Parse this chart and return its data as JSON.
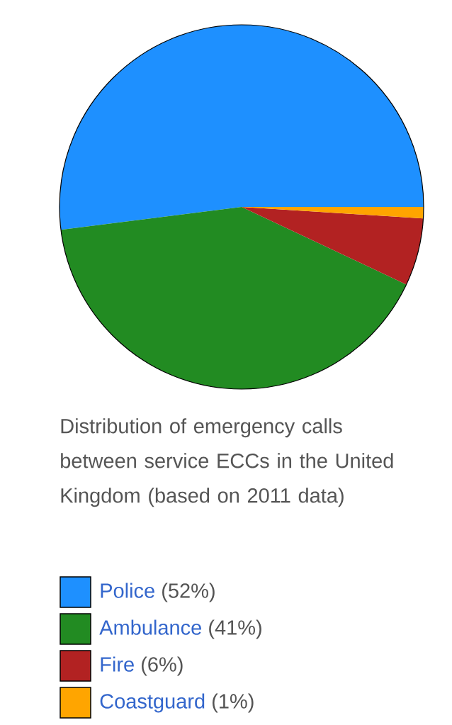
{
  "chart_data": {
    "type": "pie",
    "title": "Distribution of emergency calls between service ECCs in the United Kingdom (based on 2011 data)",
    "categories": [
      "Police",
      "Ambulance",
      "Fire",
      "Coastguard"
    ],
    "values": [
      52,
      41,
      6,
      1
    ],
    "colors": [
      "#1e90ff",
      "#228b22",
      "#b22222",
      "#ffa500"
    ],
    "value_labels": [
      "(52%)",
      "(41%)",
      "(6%)",
      "(1%)"
    ],
    "legend": "bottom"
  }
}
